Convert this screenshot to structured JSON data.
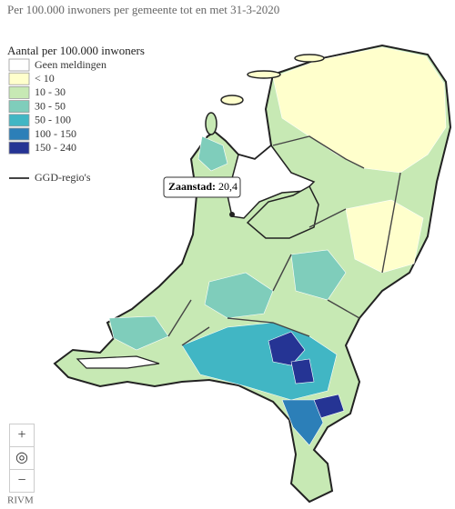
{
  "header": {
    "title": "Per 100.000 inwoners per gemeente tot en met 31-3-2020"
  },
  "legend": {
    "title": "Aantal per 100.000 inwoners",
    "items": [
      {
        "label": "Geen meldingen",
        "color": "#ffffff"
      },
      {
        "label": "< 10",
        "color": "#ffffcc"
      },
      {
        "label": "10 - 30",
        "color": "#c7e9b4"
      },
      {
        "label": "30 - 50",
        "color": "#7fcdbb"
      },
      {
        "label": "50 - 100",
        "color": "#41b6c4"
      },
      {
        "label": "100 - 150",
        "color": "#2c7fb8"
      },
      {
        "label": "150 - 240",
        "color": "#253494"
      }
    ],
    "border_label": "GGD-regio's"
  },
  "tooltip": {
    "name": "Zaanstad:",
    "value": "20,4"
  },
  "zoom": {
    "in": "+",
    "reset": "◎",
    "out": "−"
  },
  "credit": "RIVM"
}
